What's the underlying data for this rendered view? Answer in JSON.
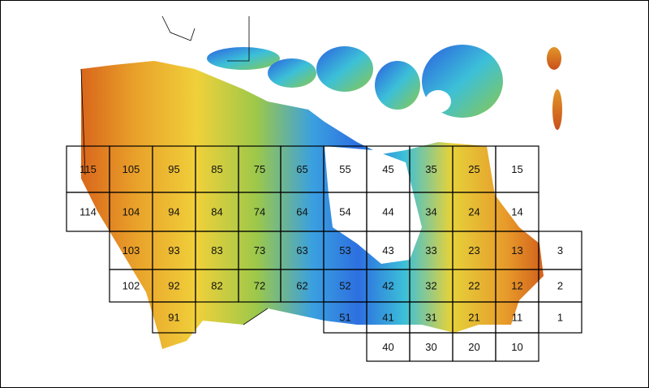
{
  "map": {
    "grid_rows": [
      [
        "115",
        "105",
        "95",
        "85",
        "75",
        "65",
        "55",
        "45",
        "35",
        "25",
        "15"
      ],
      [
        "114",
        "104",
        "94",
        "84",
        "74",
        "64",
        "54",
        "44",
        "34",
        "24",
        "14"
      ],
      [
        "103",
        "93",
        "83",
        "73",
        "63",
        "53",
        "43",
        "33",
        "23",
        "13",
        "3"
      ],
      [
        "102",
        "92",
        "82",
        "72",
        "62",
        "52",
        "42",
        "32",
        "22",
        "12",
        "2"
      ],
      [
        "91",
        "51",
        "41",
        "31",
        "21",
        "11",
        "1"
      ],
      [
        "40",
        "30",
        "20",
        "10"
      ]
    ]
  }
}
